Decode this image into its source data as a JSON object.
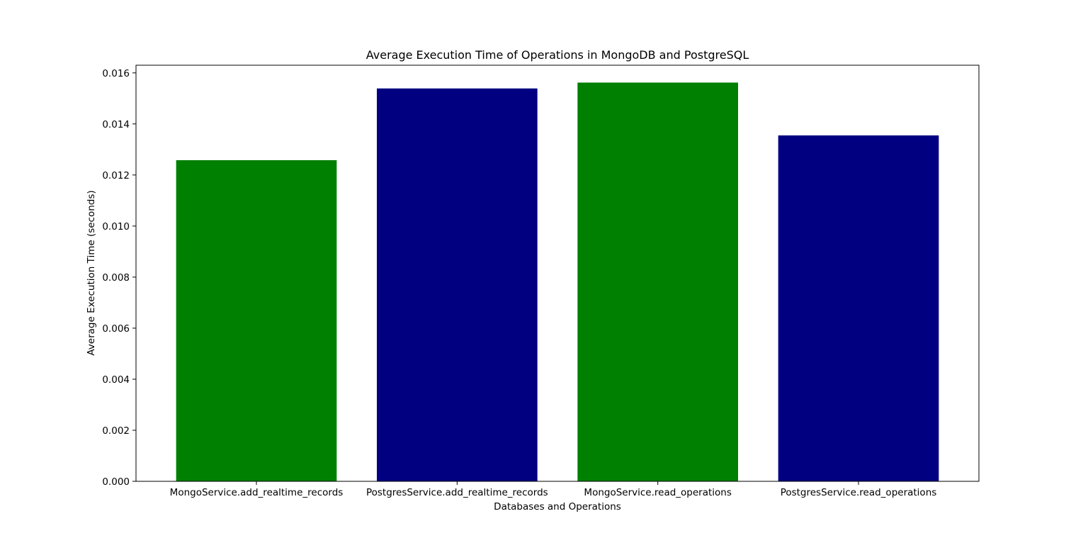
{
  "chart_data": {
    "type": "bar",
    "title": "Average Execution Time of Operations in MongoDB and PostgreSQL",
    "xlabel": "Databases and Operations",
    "ylabel": "Average Execution Time (seconds)",
    "categories": [
      "MongoService.add_realtime_records",
      "PostgresService.add_realtime_records",
      "MongoService.read_operations",
      "PostgresService.read_operations"
    ],
    "values": [
      0.01258,
      0.01539,
      0.01562,
      0.01355
    ],
    "colors": [
      "#008000",
      "#000080",
      "#008000",
      "#000080"
    ],
    "ylim": [
      0,
      0.0163
    ],
    "yticks": [
      "0.000",
      "0.002",
      "0.004",
      "0.006",
      "0.008",
      "0.010",
      "0.012",
      "0.014",
      "0.016"
    ],
    "grid": false,
    "legend": "none"
  }
}
